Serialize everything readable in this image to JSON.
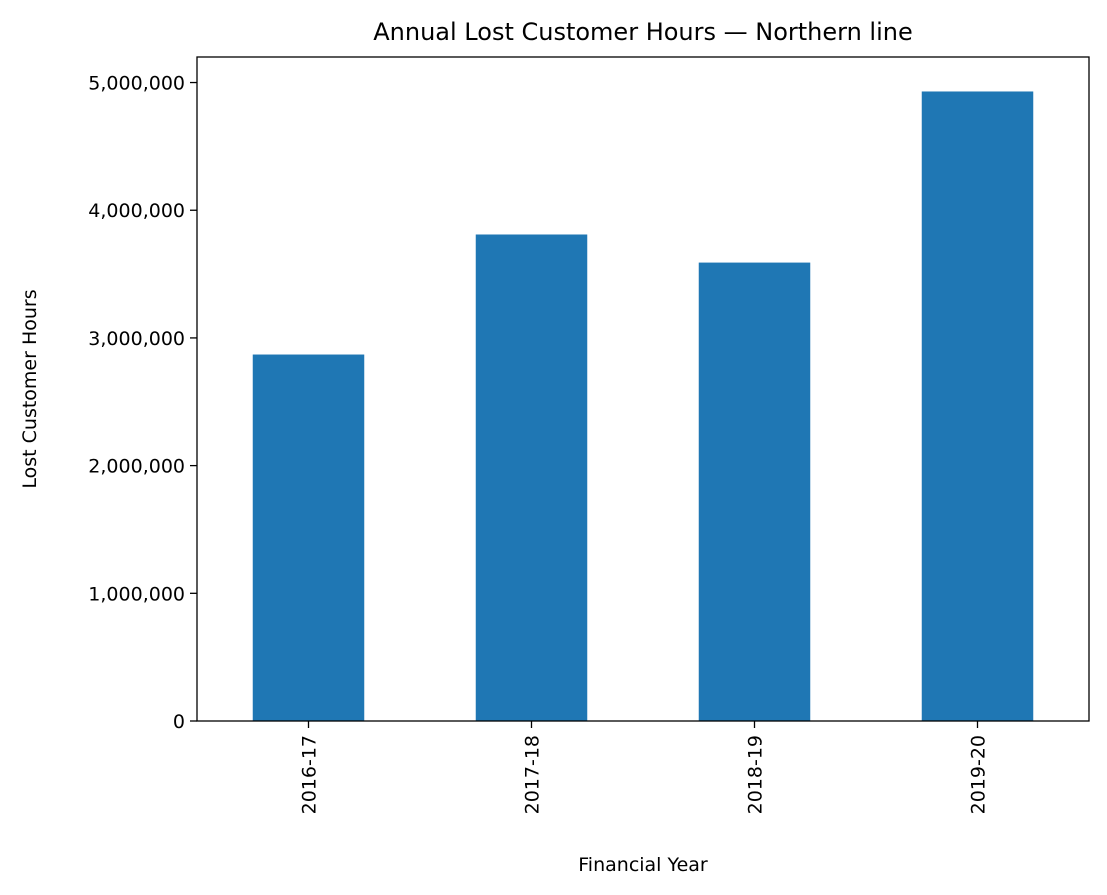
{
  "chart_data": {
    "type": "bar",
    "title": "Annual Lost Customer Hours — Northern line",
    "xlabel": "Financial Year",
    "ylabel": "Lost Customer Hours",
    "categories": [
      "2016-17",
      "2017-18",
      "2018-19",
      "2019-20"
    ],
    "values": [
      2870000,
      3810000,
      3590000,
      4930000
    ],
    "ylim": [
      0,
      5200000
    ],
    "yticks": [
      0,
      1000000,
      2000000,
      3000000,
      4000000,
      5000000
    ],
    "ytick_labels": [
      "0",
      "1,000,000",
      "2,000,000",
      "3,000,000",
      "4,000,000",
      "5,000,000"
    ],
    "bar_color": "#1f77b4",
    "grid": false,
    "legend": "none"
  }
}
